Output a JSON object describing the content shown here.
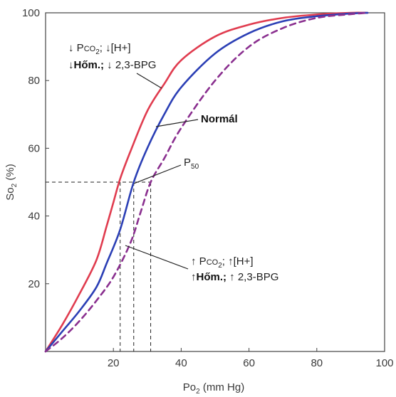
{
  "chart_data": {
    "type": "line",
    "title": "",
    "xlabel_main": "Po",
    "xlabel_sub": "2",
    "xlabel_unit": " (mm Hg)",
    "ylabel_main": "So",
    "ylabel_sub": "2",
    "ylabel_unit": " (%)",
    "xlim": [
      0,
      100
    ],
    "ylim": [
      0,
      100
    ],
    "x_ticks": [
      20,
      40,
      60,
      80,
      100
    ],
    "y_ticks": [
      20,
      40,
      60,
      80,
      100
    ],
    "grid": false,
    "series": [
      {
        "color": "#e03c4f",
        "dash": "solid",
        "points": [
          [
            0,
            0
          ],
          [
            5,
            8
          ],
          [
            10,
            17
          ],
          [
            15,
            27
          ],
          [
            18,
            37
          ],
          [
            20,
            44
          ],
          [
            22,
            51
          ],
          [
            25,
            59
          ],
          [
            30,
            71
          ],
          [
            35,
            79
          ],
          [
            40,
            86
          ],
          [
            50,
            93
          ],
          [
            60,
            96.5
          ],
          [
            70,
            98.5
          ],
          [
            80,
            99.5
          ],
          [
            90,
            100
          ],
          [
            95,
            100
          ]
        ]
      },
      {
        "color": "#2b3fb5",
        "dash": "solid",
        "points": [
          [
            0,
            0
          ],
          [
            5,
            6
          ],
          [
            10,
            12
          ],
          [
            15,
            19
          ],
          [
            18,
            26
          ],
          [
            22,
            36
          ],
          [
            26,
            50
          ],
          [
            30,
            60
          ],
          [
            35,
            70
          ],
          [
            40,
            78
          ],
          [
            50,
            88
          ],
          [
            60,
            94
          ],
          [
            70,
            97.5
          ],
          [
            80,
            99
          ],
          [
            90,
            99.8
          ],
          [
            95,
            100
          ]
        ]
      },
      {
        "color": "#8a2f8f",
        "dash": "dashed",
        "points": [
          [
            0,
            0
          ],
          [
            5,
            4
          ],
          [
            10,
            9
          ],
          [
            15,
            15
          ],
          [
            20,
            22
          ],
          [
            25,
            32
          ],
          [
            28,
            41
          ],
          [
            31,
            50
          ],
          [
            35,
            57
          ],
          [
            40,
            66
          ],
          [
            50,
            80
          ],
          [
            60,
            90
          ],
          [
            70,
            95.5
          ],
          [
            80,
            98.5
          ],
          [
            90,
            99.6
          ],
          [
            95,
            100
          ]
        ]
      }
    ],
    "p50_guides": {
      "y": 50,
      "x_values": [
        22,
        26,
        31
      ]
    },
    "annotations": {
      "left_shift_line1": {
        "arrow1": "↓",
        "p_label": "P",
        "p_sub": "CO",
        "p_sub2": "2",
        "sep": ";",
        "arrow2": "↓",
        "ion": "[H+]"
      },
      "left_shift_line2": {
        "arrow1": "↓",
        "heat": "Hőm.;",
        "arrow2": "↓",
        "bpg": "2,3-BPG"
      },
      "normal": "Normál",
      "p50_main": "P",
      "p50_sub": "50",
      "right_shift_line1": {
        "arrow1": "↑",
        "p_label": "P",
        "p_sub": "CO",
        "p_sub2": "2",
        "sep": ";",
        "arrow2": "↑",
        "ion": "[H+]"
      },
      "right_shift_line2": {
        "arrow1": "↑",
        "heat": "Hőm.;",
        "arrow2": "↑",
        "bpg": "2,3-BPG"
      }
    }
  }
}
